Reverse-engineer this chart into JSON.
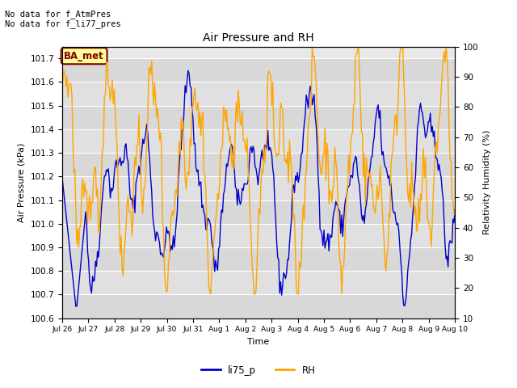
{
  "title": "Air Pressure and RH",
  "xlabel": "Time",
  "ylabel_left": "Air Pressure (kPa)",
  "ylabel_right": "Relativity Humidity (%)",
  "ylim_left": [
    100.6,
    101.75
  ],
  "ylim_right": [
    10,
    100
  ],
  "yticks_left": [
    100.6,
    100.7,
    100.8,
    100.9,
    101.0,
    101.1,
    101.2,
    101.3,
    101.4,
    101.5,
    101.6,
    101.7
  ],
  "yticks_right": [
    10,
    20,
    30,
    40,
    50,
    60,
    70,
    80,
    90,
    100
  ],
  "annotation_text": "No data for f_AtmPres\nNo data for f_li77_pres",
  "box_label": "BA_met",
  "line1_label": "li75_p",
  "line2_label": "RH",
  "line1_color": "#0000cc",
  "line2_color": "#ffa500",
  "background_color": "#ffffff",
  "plot_bg_color": "#e8e8e8",
  "grid_color": "#ffffff",
  "box_fill": "#ffff99",
  "box_edge": "#800000",
  "box_text_color": "#800000",
  "n_points": 400,
  "seed": 42
}
